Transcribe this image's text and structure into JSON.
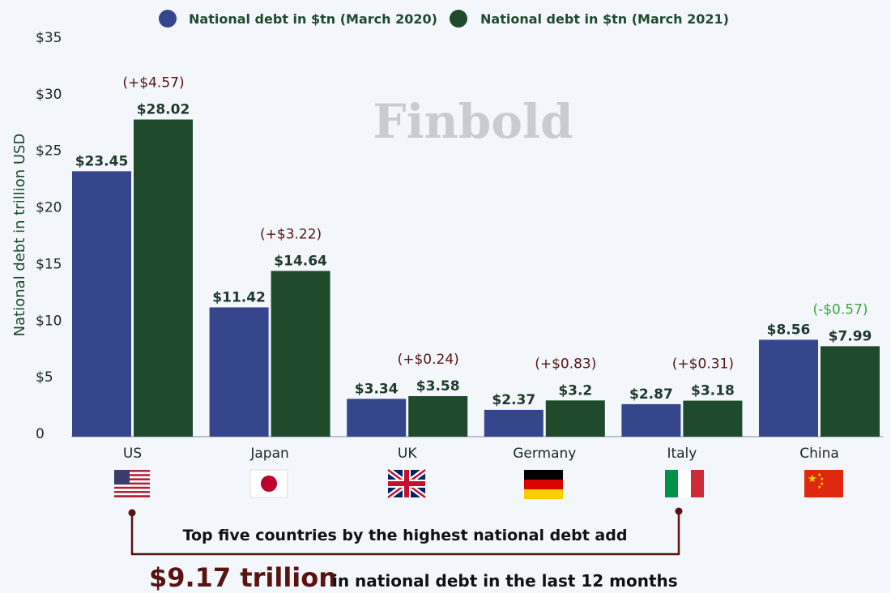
{
  "watermark": "Finbold",
  "legend": [
    {
      "label": "National debt in $tn (March 2020)",
      "color": "#35468c"
    },
    {
      "label": "National debt in $tn (March 2021)",
      "color": "#204a2c"
    }
  ],
  "colors": {
    "increase": "#5a1313",
    "decrease": "#3aa83a"
  },
  "chart_data": {
    "type": "bar",
    "ylabel": "National debt in trillion USD",
    "ylim": [
      0,
      35
    ],
    "yticks": [
      "0",
      "$5",
      "$10",
      "$15",
      "$20",
      "$25",
      "$30",
      "$35"
    ],
    "ytick_values": [
      0,
      5,
      10,
      15,
      20,
      25,
      30,
      35
    ],
    "categories": [
      "US",
      "Japan",
      "UK",
      "Germany",
      "Italy",
      "China"
    ],
    "flags": [
      "us-flag-icon",
      "japan-flag-icon",
      "uk-flag-icon",
      "germany-flag-icon",
      "italy-flag-icon",
      "china-flag-icon"
    ],
    "series": [
      {
        "name": "National debt in $tn (March 2020)",
        "values": [
          23.45,
          11.42,
          3.34,
          2.37,
          2.87,
          8.56
        ],
        "labels": [
          "$23.45",
          "$11.42",
          "$3.34",
          "$2.37",
          "$2.87",
          "$8.56"
        ]
      },
      {
        "name": "National debt in $tn (March 2021)",
        "values": [
          28.02,
          14.64,
          3.58,
          3.2,
          3.18,
          7.99
        ],
        "labels": [
          "$28.02",
          "$14.64",
          "$3.58",
          "$3.2",
          "$3.18",
          "$7.99"
        ]
      }
    ],
    "changes": [
      "(+$4.57)",
      "(+$3.22)",
      "(+$0.24)",
      "(+$0.83)",
      "(+$0.31)",
      "(-$0.57)"
    ],
    "grid": false,
    "legend_position": "top-center"
  },
  "annotation": {
    "note": "Top five countries by the highest national debt add",
    "amount": "$9.17 trillion",
    "tail": "in national debt in the last 12 months"
  }
}
